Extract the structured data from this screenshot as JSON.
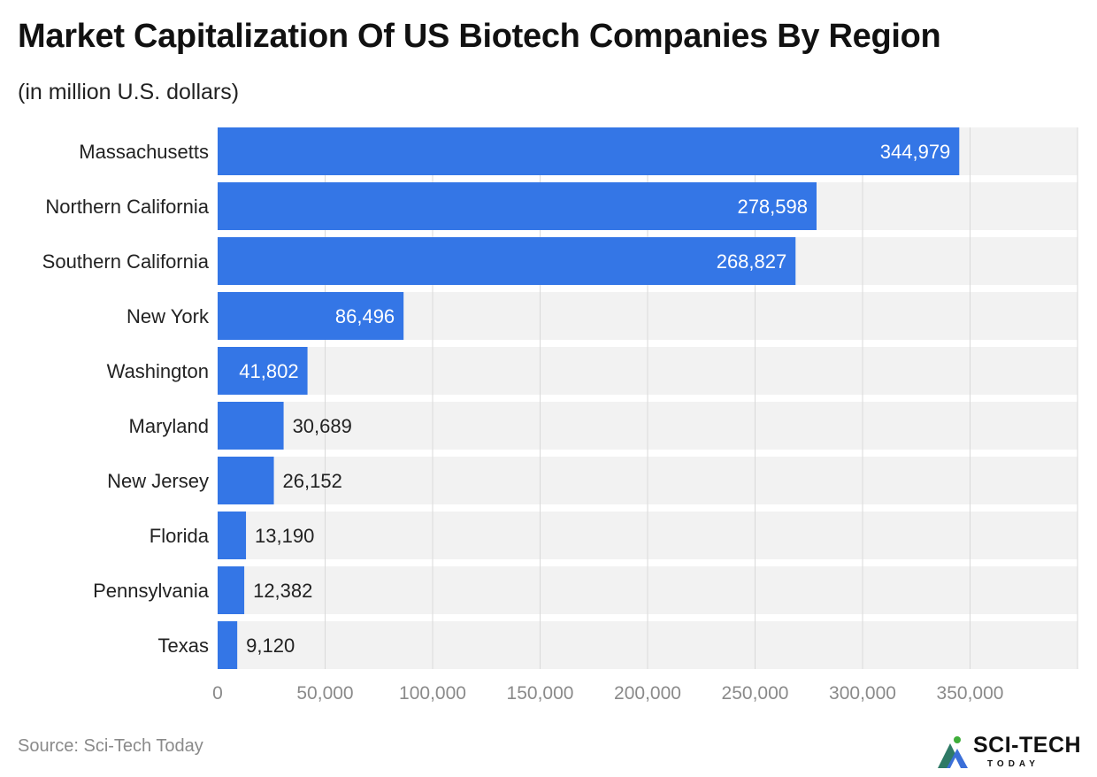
{
  "title": "Market Capitalization Of US Biotech Companies By Region",
  "subtitle": "(in million U.S. dollars)",
  "source": "Source: Sci-Tech Today",
  "logo": {
    "word": "SCI-TECH",
    "sub": "TODAY"
  },
  "colors": {
    "bar": "#3476e6",
    "track": "#f2f2f2",
    "grid": "#d9d9d9",
    "inside_label": "#ffffff",
    "outside_label": "#222222",
    "tick": "#8a8a8a"
  },
  "chart_data": {
    "type": "bar",
    "orientation": "horizontal",
    "categories": [
      "Massachusetts",
      "Northern California",
      "Southern California",
      "New York",
      "Washington",
      "Maryland",
      "New Jersey",
      "Florida",
      "Pennsylvania",
      "Texas"
    ],
    "values": [
      344979,
      278598,
      268827,
      86496,
      41802,
      30689,
      26152,
      13190,
      12382,
      9120
    ],
    "data_labels": [
      "344,979",
      "278,598",
      "268,827",
      "86,496",
      "41,802",
      "30,689",
      "26,152",
      "13,190",
      "12,382",
      "9,120"
    ],
    "xlim": [
      0,
      400000
    ],
    "xticks": [
      0,
      50000,
      100000,
      150000,
      200000,
      250000,
      300000,
      350000
    ],
    "xtick_labels": [
      "0",
      "50,000",
      "100,000",
      "150,000",
      "200,000",
      "250,000",
      "300,000",
      "350,000"
    ],
    "grid": true,
    "legend": false
  }
}
